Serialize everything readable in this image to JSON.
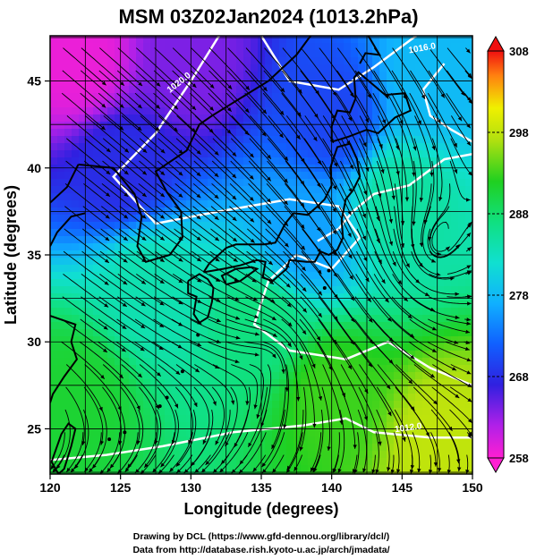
{
  "title": "MSM 03Z02Jan2024 (1013.2hPa)",
  "xlabel": "Longitude (degrees)",
  "ylabel": "Latitude  (degrees)",
  "x_ticks": [
    "120",
    "125",
    "130",
    "135",
    "140",
    "145",
    "150"
  ],
  "y_ticks": [
    "25",
    "30",
    "35",
    "40",
    "45"
  ],
  "colorbar_ticks": [
    "308",
    "298",
    "288",
    "278",
    "268",
    "258"
  ],
  "isobar_labels": [
    "1020.0",
    "1016.0",
    "1012.0"
  ],
  "credits": {
    "line1": "Drawing by DCL (https://www.gfd-dennou.org/library/dcl/)",
    "line2": "Data from http://database.rish.kyoto-u.ac.jp/arch/jmadata/"
  },
  "chart_data": {
    "type": "heatmap",
    "variable": "temperature (K) with wind streamlines and isobars",
    "pressure_level_hPa": 1013.2,
    "valid_time": "03Z02Jan2024",
    "xlim": [
      120,
      150
    ],
    "ylim": [
      22.4,
      47.6
    ],
    "colorbar_range": [
      258,
      308
    ],
    "colorbar_ticks": [
      258,
      268,
      278,
      288,
      298,
      308
    ],
    "isobars_hPa": [
      1020,
      1016,
      1012
    ],
    "temperature_samples": [
      {
        "lon": 122,
        "lat": 46,
        "value": 259
      },
      {
        "lon": 130,
        "lat": 46,
        "value": 264
      },
      {
        "lon": 125,
        "lat": 40,
        "value": 268
      },
      {
        "lon": 140,
        "lat": 43,
        "value": 270
      },
      {
        "lon": 147,
        "lat": 45,
        "value": 278
      },
      {
        "lon": 138,
        "lat": 36,
        "value": 276
      },
      {
        "lon": 145,
        "lat": 38,
        "value": 285
      },
      {
        "lon": 127,
        "lat": 33,
        "value": 284
      },
      {
        "lon": 135,
        "lat": 31,
        "value": 287
      },
      {
        "lon": 122,
        "lat": 27,
        "value": 291
      },
      {
        "lon": 140,
        "lat": 27,
        "value": 293
      },
      {
        "lon": 148,
        "lat": 24,
        "value": 298
      }
    ]
  }
}
